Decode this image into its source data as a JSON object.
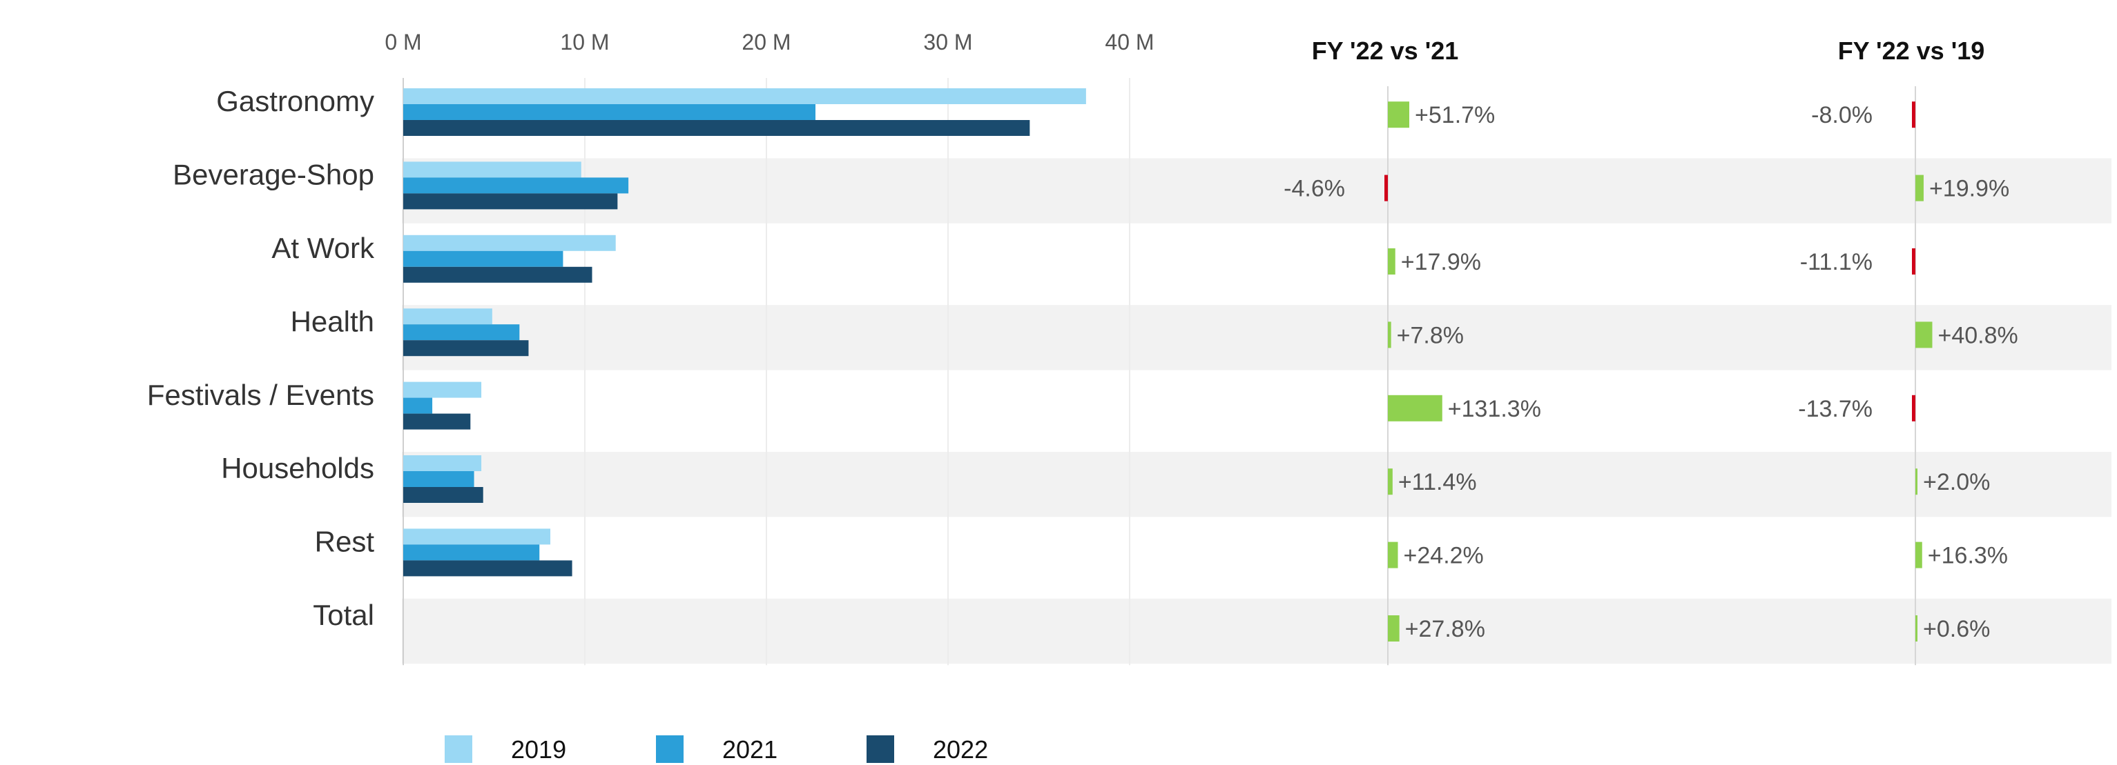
{
  "chart_data": {
    "type": "bar",
    "orientation": "horizontal",
    "categories": [
      "Gastronomy",
      "Beverage-Shop",
      "At Work",
      "Health",
      "Festivals / Events",
      "Households",
      "Rest",
      "Total"
    ],
    "x_ticks": [
      "0 M",
      "10 M",
      "20 M",
      "30 M",
      "40 M"
    ],
    "xlim": [
      0,
      40
    ],
    "unit": "M",
    "grid": true,
    "legend_position": "bottom-left",
    "series": [
      {
        "name": "2019",
        "color": "#9ad8f4",
        "values": [
          37.6,
          9.8,
          11.7,
          4.9,
          4.3,
          4.3,
          8.1,
          null
        ]
      },
      {
        "name": "2021",
        "color": "#2b9fd8",
        "values": [
          22.7,
          12.4,
          8.8,
          6.4,
          1.6,
          3.9,
          7.5,
          null
        ]
      },
      {
        "name": "2022",
        "color": "#1a4b6e",
        "values": [
          34.5,
          11.8,
          10.4,
          6.9,
          3.7,
          4.4,
          9.3,
          null
        ]
      }
    ],
    "delta_panels": [
      {
        "title": "FY '22 vs '21",
        "labels": [
          "+51.7%",
          "-4.6%",
          "+17.9%",
          "+7.8%",
          "+131.3%",
          "+11.4%",
          "+24.2%",
          "+27.8%"
        ],
        "values": [
          51.7,
          -4.6,
          17.9,
          7.8,
          131.3,
          11.4,
          24.2,
          27.8
        ]
      },
      {
        "title": "FY '22 vs '19",
        "labels": [
          "-8.0%",
          "+19.9%",
          "-11.1%",
          "+40.8%",
          "-13.7%",
          "+2.0%",
          "+16.3%",
          "+0.6%"
        ],
        "values": [
          -8.0,
          19.9,
          -11.1,
          40.8,
          -13.7,
          2.0,
          16.3,
          0.6
        ]
      }
    ],
    "colors": {
      "positive": "#8fd14f",
      "negative": "#d0021b",
      "row_band": "#f2f2f2"
    }
  }
}
